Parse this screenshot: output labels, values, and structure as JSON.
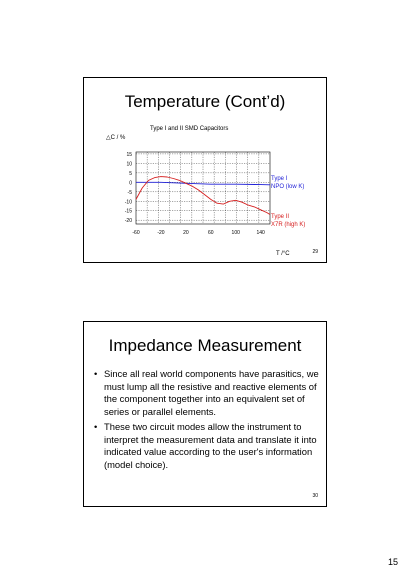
{
  "slides": [
    {
      "title": "Temperature (Cont’d)",
      "slide_number": "29"
    },
    {
      "title": "Impedance Measurement",
      "bullets": [
        "Since all real world components have parasitics, we must lump all the resistive and reactive elements of the component together into an equivalent set of series or parallel elements.",
        "These two circuit modes allow the instrument to interpret the measurement data and translate it into indicated value according to the user's information (model choice)."
      ],
      "bullet_char": "•",
      "slide_number": "30"
    }
  ],
  "page_number": "15",
  "chart_data": {
    "type": "line",
    "title": "Type I and II  SMD Capacitors",
    "ylabel": "△C / %",
    "xlabel": "T /°C",
    "x_ticks": [
      "-60",
      "-20",
      "20",
      "60",
      "100",
      "140"
    ],
    "y_ticks": [
      "15",
      "10",
      "5",
      "0",
      "-5",
      "-10",
      "-15",
      "-20"
    ],
    "xlim": [
      -60,
      155
    ],
    "ylim": [
      -22,
      16
    ],
    "grid": true,
    "series": [
      {
        "label_lines": [
          "Type I",
          "NPO (low K)"
        ],
        "color": "#1f1fd6",
        "x": [
          -60,
          -20,
          20,
          60,
          100,
          140,
          155
        ],
        "y": [
          0,
          0,
          -0.5,
          -1,
          -1,
          -1.2,
          -1.3
        ]
      },
      {
        "label_lines": [
          "Type II",
          "X7R (high K)"
        ],
        "color": "#d61f1f",
        "x": [
          -60,
          -50,
          -40,
          -30,
          -20,
          -10,
          0,
          10,
          20,
          30,
          40,
          50,
          60,
          70,
          80,
          90,
          100,
          110,
          120,
          130,
          140,
          150,
          155
        ],
        "y": [
          -9,
          -3,
          1,
          2.5,
          3,
          2.8,
          2,
          1,
          -0.5,
          -2,
          -4,
          -6.5,
          -9,
          -11,
          -11.5,
          -10,
          -9.5,
          -10.5,
          -12,
          -13,
          -14.5,
          -16,
          -17
        ]
      }
    ]
  }
}
